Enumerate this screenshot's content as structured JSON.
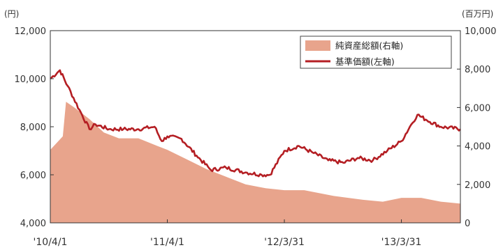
{
  "chart_data": {
    "type": "area",
    "title": "",
    "left_axis": {
      "unit": "(円)",
      "ylim": [
        4000,
        12000
      ],
      "ticks": [
        "4,000",
        "6,000",
        "8,000",
        "10,000",
        "12,000"
      ]
    },
    "right_axis": {
      "unit": "(百万円)",
      "ylim": [
        0,
        10000
      ],
      "ticks": [
        "0",
        "2,000",
        "4,000",
        "6,000",
        "8,000",
        "10,000"
      ]
    },
    "x_ticks": [
      "'10/4/1",
      "'11/4/1",
      "'12/3/31",
      "'13/3/31"
    ],
    "x_range": [
      "2010-04-01",
      "2013-10-01"
    ],
    "grid": false,
    "legend_position": "top-right",
    "series": [
      {
        "name": "純資産総額(右軸)",
        "type": "area",
        "axis": "right",
        "color": "#E8A48C",
        "x": [
          "2010-04-01",
          "2010-05-10",
          "2010-05-20",
          "2010-06-15",
          "2010-08-01",
          "2010-09-15",
          "2010-11-01",
          "2011-01-01",
          "2011-03-01",
          "2011-04-01",
          "2011-06-01",
          "2011-08-01",
          "2011-10-01",
          "2011-12-01",
          "2012-02-01",
          "2012-03-31",
          "2012-06-01",
          "2012-09-01",
          "2012-12-01",
          "2013-02-01",
          "2013-03-31",
          "2013-06-01",
          "2013-08-01",
          "2013-10-01"
        ],
        "values": [
          3800,
          4500,
          6300,
          6000,
          5400,
          4700,
          4400,
          4400,
          4000,
          3800,
          3300,
          2800,
          2400,
          2000,
          1800,
          1700,
          1700,
          1400,
          1200,
          1100,
          1300,
          1300,
          1100,
          1000
        ]
      },
      {
        "name": "基準価額(左軸)",
        "type": "line",
        "axis": "left",
        "color": "#B41E23",
        "x": [
          "2010-04-01",
          "2010-05-01",
          "2010-05-25",
          "2010-07-01",
          "2010-08-01",
          "2010-08-20",
          "2010-10-01",
          "2010-11-15",
          "2011-01-01",
          "2011-02-20",
          "2011-03-15",
          "2011-04-01",
          "2011-05-15",
          "2011-07-01",
          "2011-08-15",
          "2011-10-01",
          "2011-12-01",
          "2012-01-20",
          "2012-02-15",
          "2012-03-31",
          "2012-05-15",
          "2012-07-01",
          "2012-08-15",
          "2012-10-01",
          "2012-11-15",
          "2013-01-01",
          "2013-02-15",
          "2013-03-31",
          "2013-05-01",
          "2013-05-20",
          "2013-06-15",
          "2013-08-01",
          "2013-10-01"
        ],
        "values": [
          10000,
          10350,
          9700,
          8700,
          7900,
          8100,
          7900,
          7900,
          7900,
          8000,
          7400,
          7600,
          7500,
          6800,
          6200,
          6300,
          6100,
          6000,
          6000,
          7000,
          7200,
          6900,
          6600,
          6500,
          6700,
          6600,
          7000,
          7400,
          8100,
          8500,
          8300,
          8000,
          7900
        ]
      }
    ]
  }
}
